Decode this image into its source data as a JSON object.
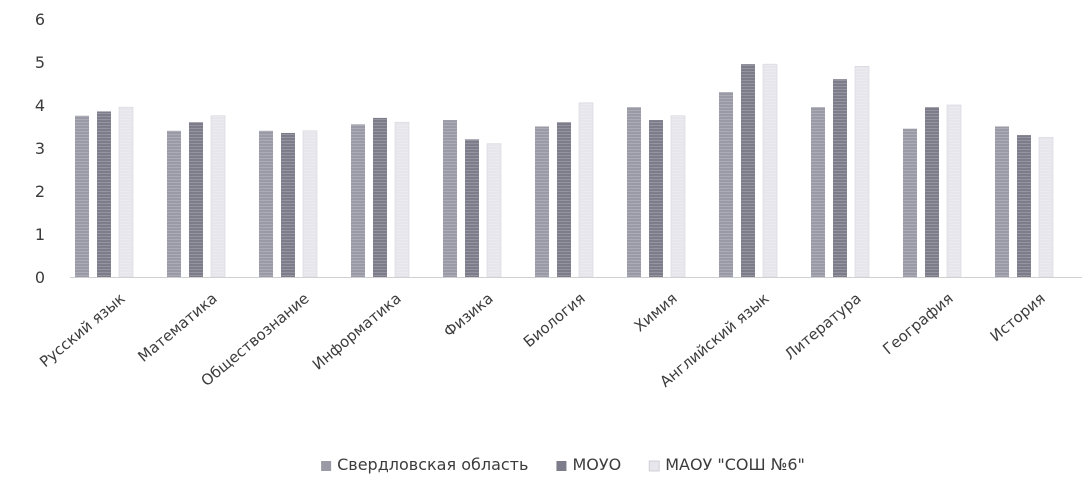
{
  "chart_data": {
    "type": "bar",
    "title": "",
    "xlabel": "",
    "ylabel": "",
    "ylim": [
      0,
      6
    ],
    "yticks": [
      0,
      1,
      2,
      3,
      4,
      5,
      6
    ],
    "grid": false,
    "legend_position": "bottom",
    "categories": [
      "Русский язык",
      "Математика",
      "Обществознание",
      "Информатика",
      "Физика",
      "Биология",
      "Химия",
      "Английский язык",
      "Литература",
      "География",
      "История"
    ],
    "series": [
      {
        "name": "Свердловская область",
        "color": "#9a9aa6",
        "values": [
          3.75,
          3.4,
          3.4,
          3.55,
          3.65,
          3.5,
          3.95,
          4.3,
          3.95,
          3.45,
          3.5
        ]
      },
      {
        "name": "МОУО",
        "color": "#7c7c8a",
        "values": [
          3.85,
          3.6,
          3.35,
          3.7,
          3.2,
          3.6,
          3.65,
          4.95,
          4.6,
          3.95,
          3.3
        ]
      },
      {
        "name": "МАОУ \"СОШ №6\"",
        "color": "#e6e6ec",
        "values": [
          3.95,
          3.75,
          3.4,
          3.6,
          3.1,
          4.05,
          3.75,
          4.95,
          4.9,
          4.0,
          3.25
        ]
      }
    ]
  }
}
